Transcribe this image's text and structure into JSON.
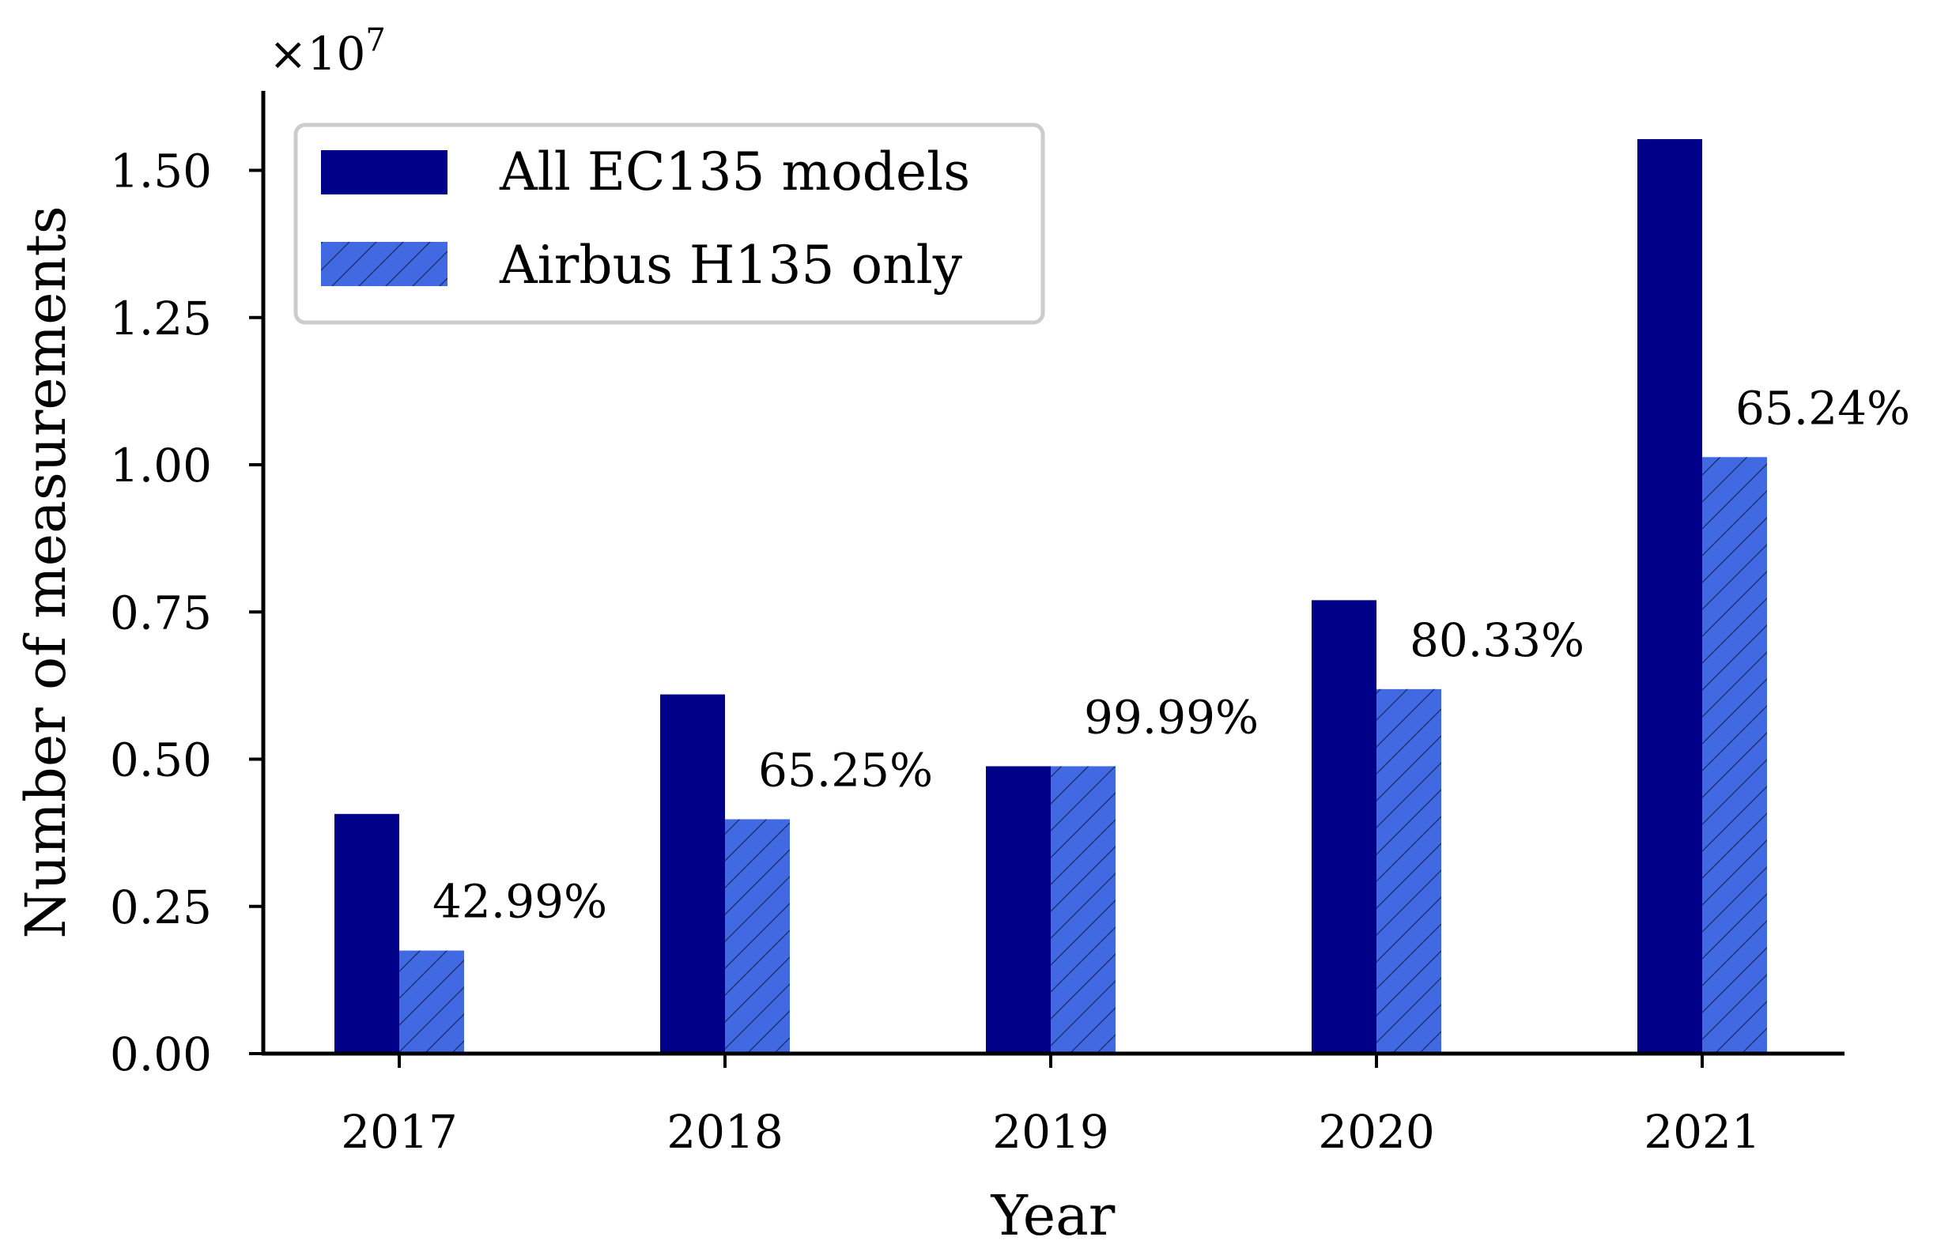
{
  "chart_data": {
    "type": "bar",
    "title": "",
    "xlabel": "Year",
    "ylabel": "Number of measurements",
    "y_multiplier": "×10",
    "y_multiplier_exponent": "7",
    "categories": [
      "2017",
      "2018",
      "2019",
      "2020",
      "2021"
    ],
    "series": [
      {
        "name": "All EC135 models",
        "color": "#000088",
        "hatch": false,
        "values": [
          4070000,
          6100000,
          4880000,
          7700000,
          15530000
        ]
      },
      {
        "name": "Airbus H135 only",
        "color": "#4169E1",
        "hatch": true,
        "values": [
          1750000,
          3980000,
          4880000,
          6190000,
          10130000
        ]
      }
    ],
    "data_labels": [
      "42.99%",
      "65.25%",
      "99.99%",
      "80.33%",
      "65.24%"
    ],
    "ylim": [
      0,
      16300000
    ],
    "yticks": [
      0,
      2500000,
      5000000,
      7500000,
      10000000,
      12500000,
      15000000
    ],
    "ytick_labels": [
      "0.00",
      "0.25",
      "0.50",
      "0.75",
      "1.00",
      "1.25",
      "1.50"
    ],
    "grid": false,
    "legend_position": "top-left"
  }
}
